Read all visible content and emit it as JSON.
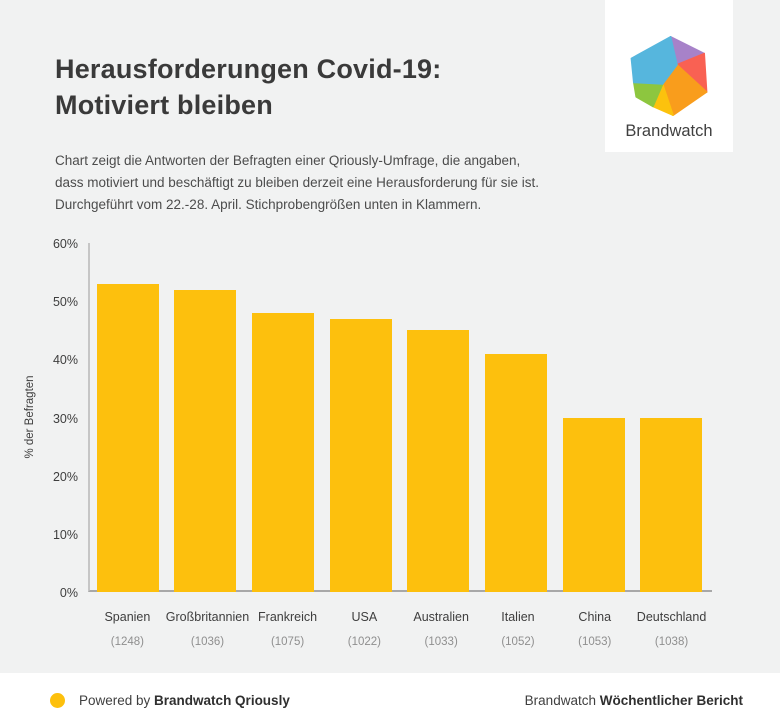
{
  "header": {
    "title": "Herausforderungen Covid-19:\nMotiviert bleiben",
    "subtitle": "Chart zeigt die Antworten der Befragten einer Qriously-Umfrage, die angaben,\ndass motiviert und beschäftigt zu bleiben derzeit eine Herausforderung für sie ist.\nDurchgeführt vom 22.-28. April. Stichprobengrößen unten in Klammern."
  },
  "logo": {
    "brand_name": "Brandwatch",
    "colors": {
      "blue": "#56b6dd",
      "purple": "#a782c9",
      "red": "#f96153",
      "orange": "#f99d1c",
      "yellow": "#fcc20d",
      "green": "#8dc63f"
    }
  },
  "chart_data": {
    "type": "bar",
    "categories": [
      "Spanien",
      "Großbritannien",
      "Frankreich",
      "USA",
      "Australien",
      "Italien",
      "China",
      "Deutschland"
    ],
    "sample_sizes": [
      "(1248)",
      "(1036)",
      "(1075)",
      "(1022)",
      "(1033)",
      "(1052)",
      "(1053)",
      "(1038)"
    ],
    "values": [
      53,
      52,
      48,
      47,
      45,
      41,
      30,
      30
    ],
    "title": "",
    "xlabel": "",
    "ylabel": "% der Befragten",
    "ylim": [
      0,
      60
    ],
    "yticks": [
      "0%",
      "10%",
      "20%",
      "30%",
      "40%",
      "50%",
      "60%"
    ],
    "bar_color": "#fdc00d",
    "grid": false,
    "legend": null
  },
  "footer": {
    "left_regular": "Powered by ",
    "left_bold": "Brandwatch Qriously",
    "right_regular": "Brandwatch ",
    "right_bold": "Wöchentlicher Bericht",
    "dot_color": "#fdc00d"
  }
}
